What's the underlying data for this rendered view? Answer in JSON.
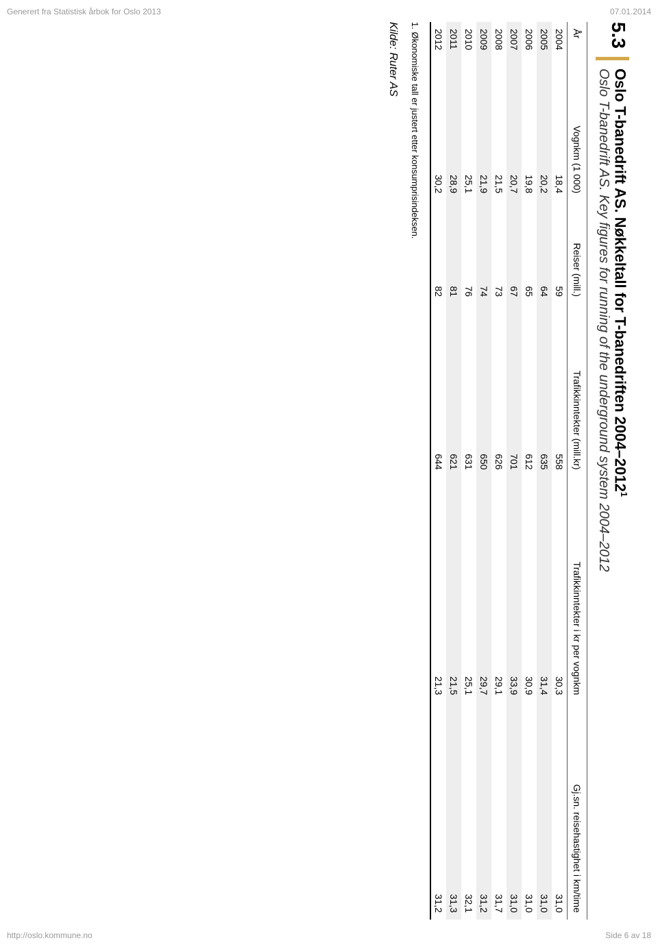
{
  "header": {
    "left": "Generert fra Statistisk årbok for Oslo 2013",
    "right": "07.01.2014"
  },
  "footer": {
    "left": "http://oslo.kommune.no",
    "right": "Side 6 av 18"
  },
  "section": {
    "number": "5.3",
    "title_main": "Oslo T-banedrift AS. Nøkkeltall for T-banedriften 2004–2012",
    "title_sup": "1",
    "title_sub": "Oslo T-banedrift AS. Key figures for running of the underground system 2004–2012"
  },
  "table": {
    "columns": [
      "År",
      "Vognkm (1 000)",
      "Reiser (mill.)",
      "Trafikkinntekter (mill.kr)",
      "Trafikkinntekter i kr per vognkm",
      "Gj.sn. reisehastighet i km/time"
    ],
    "rows": [
      [
        "2004",
        "18,4",
        "59",
        "558",
        "30,3",
        "31,0"
      ],
      [
        "2005",
        "20,2",
        "64",
        "635",
        "31,4",
        "31,0"
      ],
      [
        "2006",
        "19,8",
        "65",
        "612",
        "30,9",
        "31,0"
      ],
      [
        "2007",
        "20,7",
        "67",
        "701",
        "33,9",
        "31,0"
      ],
      [
        "2008",
        "21,5",
        "73",
        "626",
        "29,1",
        "31,7"
      ],
      [
        "2009",
        "21,9",
        "74",
        "650",
        "29,7",
        "31,2"
      ],
      [
        "2010",
        "25,1",
        "76",
        "631",
        "25,1",
        "32,1"
      ],
      [
        "2011",
        "28,9",
        "81",
        "621",
        "21,5",
        "31,3"
      ],
      [
        "2012",
        "30,2",
        "82",
        "644",
        "21,3",
        "31,2"
      ]
    ]
  },
  "footnote": "1.   Økonomiske tall er justert etter konsumprisindeksen.",
  "source": "Kilde: Ruter AS"
}
